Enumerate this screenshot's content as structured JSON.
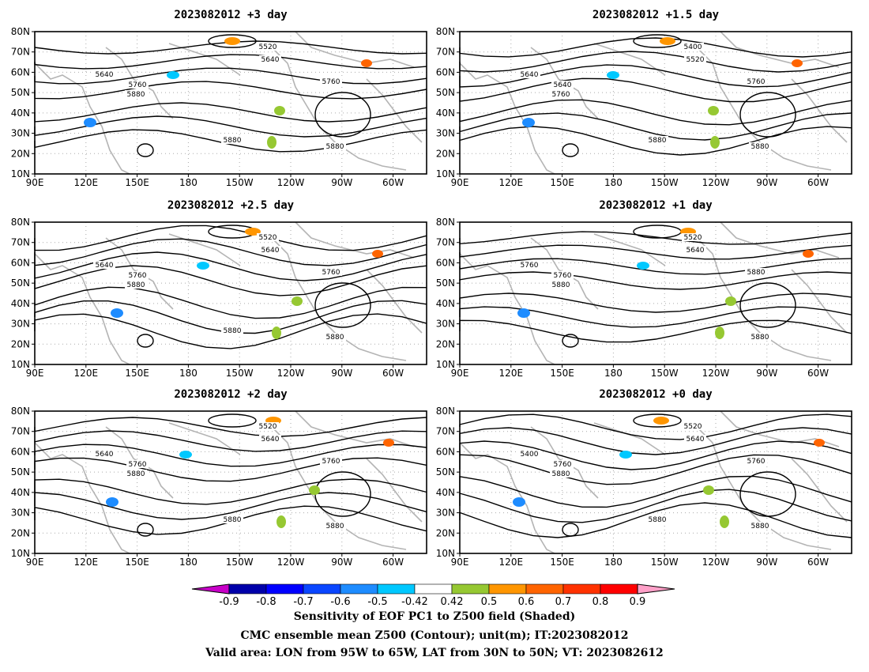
{
  "panels": [
    {
      "title": "2023082012 +3 day",
      "contour_labels": [
        "5520",
        "5640",
        "5640",
        "5760",
        "5760",
        "5880",
        "5880",
        "5880"
      ]
    },
    {
      "title": "2023082012 +1.5 day",
      "contour_labels": [
        "5400",
        "5520",
        "5640",
        "5640",
        "5760",
        "5760",
        "5880",
        "5880"
      ]
    },
    {
      "title": "2023082012 +2.5 day",
      "contour_labels": [
        "5520",
        "5640",
        "5640",
        "5760",
        "5760",
        "5880",
        "5880",
        "5880"
      ]
    },
    {
      "title": "2023082012 +1 day",
      "contour_labels": [
        "5520",
        "5640",
        "5760",
        "5760",
        "5880",
        "5880",
        "5880"
      ]
    },
    {
      "title": "2023082012 +2 day",
      "contour_labels": [
        "5520",
        "5640",
        "5640",
        "5760",
        "5760",
        "5880",
        "5880",
        "5880"
      ]
    },
    {
      "title": "2023082012 +0 day",
      "contour_labels": [
        "5520",
        "5640",
        "5400",
        "5760",
        "5760",
        "5880",
        "5880",
        "5880"
      ]
    }
  ],
  "axes": {
    "lat_ticks": [
      "10N",
      "20N",
      "30N",
      "40N",
      "50N",
      "60N",
      "70N",
      "80N"
    ],
    "lon_ticks": [
      "90E",
      "120E",
      "150E",
      "180",
      "150W",
      "120W",
      "90W",
      "60W"
    ]
  },
  "colorbar": {
    "ticks": [
      "-0.9",
      "-0.8",
      "-0.7",
      "-0.6",
      "-0.5",
      "-0.42",
      "0.42",
      "0.5",
      "0.6",
      "0.7",
      "0.8",
      "0.9"
    ],
    "low_color": "#c800c8",
    "colors": [
      "#0000aa",
      "#0000ff",
      "#0a46ff",
      "#1e8cff",
      "#00c8ff",
      "#ffffff",
      "#96c832",
      "#ff9600",
      "#ff6400",
      "#ff3200",
      "#ff0000"
    ],
    "high_color": "#ffa0c8"
  },
  "captions": [
    "Sensitivity of EOF PC1 to Z500 field (Shaded)",
    "CMC ensemble mean Z500 (Contour); unit(m); IT:2023082012",
    "Valid area: LON from 95W to 65W, LAT from 30N to 50N; VT: 2023082612"
  ]
}
